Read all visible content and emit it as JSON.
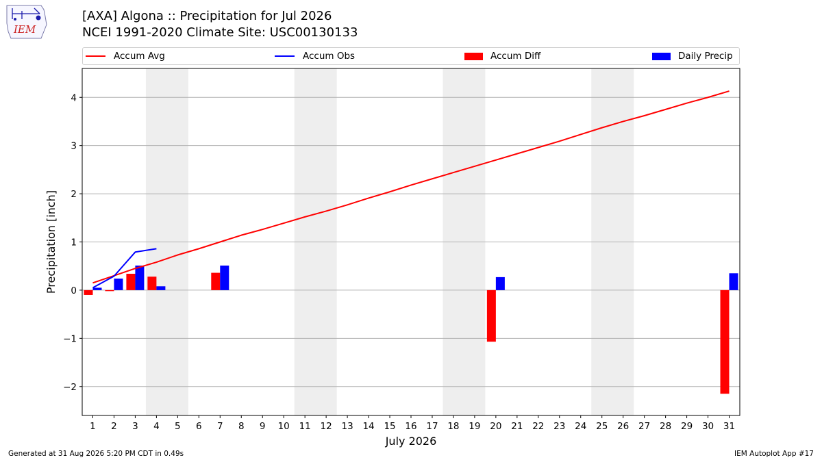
{
  "header": {
    "logo_text": "IEM",
    "title_line1": "[AXA] Algona :: Precipitation for Jul 2026",
    "title_line2": "NCEI 1991-2020 Climate Site: USC00130133"
  },
  "legend": {
    "items": [
      {
        "label": "Accum Avg",
        "kind": "line",
        "color": "#ff0000"
      },
      {
        "label": "Accum Obs",
        "kind": "line",
        "color": "#0000ff"
      },
      {
        "label": "Accum Diff",
        "kind": "bar",
        "color": "#ff0000"
      },
      {
        "label": "Daily Precip",
        "kind": "bar",
        "color": "#0000ff"
      }
    ]
  },
  "chart_data": {
    "type": "bar",
    "xlabel": "July 2026",
    "ylabel": "Precipitation [inch]",
    "x": [
      1,
      2,
      3,
      4,
      5,
      6,
      7,
      8,
      9,
      10,
      11,
      12,
      13,
      14,
      15,
      16,
      17,
      18,
      19,
      20,
      21,
      22,
      23,
      24,
      25,
      26,
      27,
      28,
      29,
      30,
      31
    ],
    "xlim": [
      0.5,
      31.5
    ],
    "ylim": [
      -2.6,
      4.6
    ],
    "yticks": [
      -2,
      -1,
      0,
      1,
      2,
      3,
      4
    ],
    "ytick_labels": [
      "−2",
      "−1",
      "0",
      "1",
      "2",
      "3",
      "4"
    ],
    "grid": "horizontal",
    "weekend_shading": [
      [
        3.5,
        5.5
      ],
      [
        10.5,
        12.5
      ],
      [
        17.5,
        19.5
      ],
      [
        24.5,
        26.5
      ]
    ],
    "weekend_color": "#eeeeee",
    "series": [
      {
        "name": "Accum Avg",
        "type": "line",
        "color": "#ff0000",
        "x": [
          1,
          2,
          3,
          4,
          5,
          6,
          7,
          8,
          9,
          10,
          11,
          12,
          13,
          14,
          15,
          16,
          17,
          18,
          19,
          20,
          21,
          22,
          23,
          24,
          25,
          26,
          27,
          28,
          29,
          30,
          31
        ],
        "values": [
          0.15,
          0.3,
          0.45,
          0.58,
          0.73,
          0.86,
          1.0,
          1.14,
          1.26,
          1.39,
          1.52,
          1.64,
          1.77,
          1.91,
          2.04,
          2.18,
          2.31,
          2.44,
          2.57,
          2.7,
          2.83,
          2.96,
          3.09,
          3.23,
          3.37,
          3.5,
          3.62,
          3.75,
          3.88,
          4.0,
          4.13
        ]
      },
      {
        "name": "Accum Obs",
        "type": "line",
        "color": "#0000ff",
        "x": [
          1,
          2,
          3,
          4
        ],
        "values": [
          0.05,
          0.29,
          0.79,
          0.86
        ]
      },
      {
        "name": "Accum Diff",
        "type": "bar",
        "color": "#ff0000",
        "x": [
          1,
          2,
          3,
          4,
          7,
          20,
          31
        ],
        "values": [
          -0.1,
          -0.02,
          0.34,
          0.28,
          0.36,
          -1.07,
          -2.15
        ]
      },
      {
        "name": "Daily Precip",
        "type": "bar",
        "color": "#0000ff",
        "x": [
          1,
          2,
          3,
          4,
          7,
          20,
          31
        ],
        "values": [
          0.05,
          0.24,
          0.51,
          0.08,
          0.51,
          0.27,
          0.35
        ]
      }
    ]
  },
  "footer": {
    "generated": "Generated at 31 Aug 2026 5:20 PM CDT in 0.49s",
    "app": "IEM Autoplot App #17"
  }
}
